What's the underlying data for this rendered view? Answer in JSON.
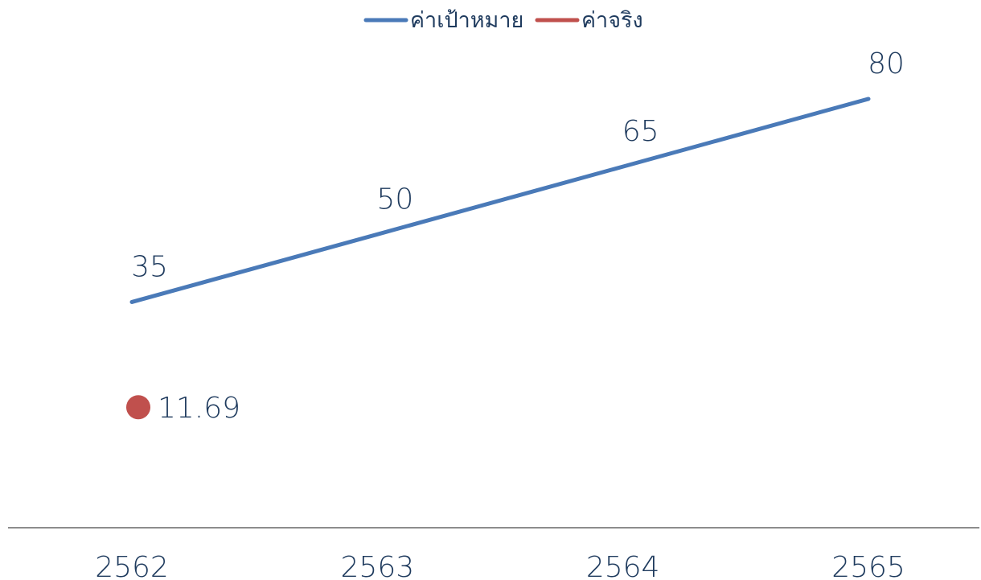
{
  "chart_data": {
    "type": "line",
    "categories": [
      "2562",
      "2563",
      "2564",
      "2565"
    ],
    "series": [
      {
        "name": "ค่าเป้าหมาย",
        "values": [
          35,
          50,
          65,
          80
        ],
        "color": "#4a7ab8",
        "labels": [
          "35",
          "50",
          "65",
          "80"
        ],
        "marker": "none"
      },
      {
        "name": "ค่าจริง",
        "values": [
          11.69,
          null,
          null,
          null
        ],
        "color": "#c0504d",
        "labels": [
          "11.69",
          "",
          "",
          ""
        ],
        "marker": "circle"
      }
    ],
    "title": "",
    "xlabel": "",
    "ylabel": "",
    "ylim": [
      -15,
      93
    ],
    "grid": false,
    "y_axis_visible": false,
    "legend_position": "top-center"
  }
}
